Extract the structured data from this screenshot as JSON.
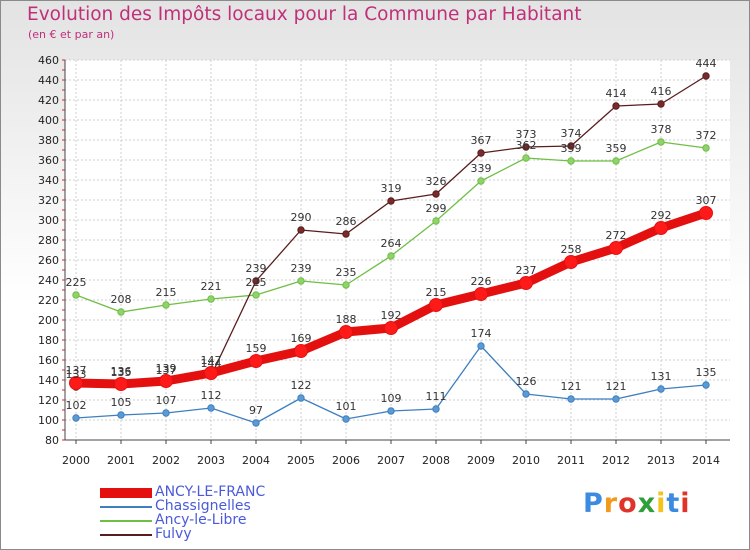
{
  "header": {
    "title": "Evolution des Impôts locaux pour la Commune par Habitant",
    "subtitle": "(en € et par an)"
  },
  "brand": {
    "text": "Proxiti",
    "letter_colors": [
      "#3b8be0",
      "#f29a1c",
      "#e0342b",
      "#2e9f3a",
      "#f2c51c",
      "#3b8be0",
      "#e0342b"
    ]
  },
  "chart_data": {
    "type": "line",
    "title": "Evolution des Impôts locaux pour la Commune par Habitant",
    "subtitle": "(en € et par an)",
    "x": [
      "2000",
      "2001",
      "2002",
      "2003",
      "2004",
      "2005",
      "2006",
      "2007",
      "2008",
      "2009",
      "2010",
      "2011",
      "2012",
      "2013",
      "2014"
    ],
    "ylim": [
      80,
      460
    ],
    "yticks": [
      80,
      100,
      120,
      140,
      160,
      180,
      200,
      220,
      240,
      260,
      280,
      300,
      320,
      340,
      360,
      380,
      400,
      420,
      440,
      460
    ],
    "grid": true,
    "legend_position": "bottom-left",
    "series": [
      {
        "name": "ANCY-LE-FRANC",
        "color": "#ff0000",
        "values": [
          137,
          136,
          139,
          147,
          159,
          169,
          188,
          192,
          215,
          226,
          237,
          258,
          272,
          292,
          307
        ]
      },
      {
        "name": "Chassignelles",
        "color": "#5b9bd5",
        "values": [
          102,
          105,
          107,
          112,
          97,
          122,
          101,
          109,
          111,
          174,
          126,
          121,
          121,
          131,
          135
        ]
      },
      {
        "name": "Ancy-le-Libre",
        "color": "#8fd36a",
        "values": [
          225,
          208,
          215,
          221,
          225,
          239,
          235,
          264,
          299,
          339,
          362,
          359,
          359,
          378,
          372
        ]
      },
      {
        "name": "Fulvy",
        "color": "#7a2a2a",
        "values": [
          133,
          135,
          137,
          144,
          239,
          290,
          286,
          319,
          326,
          367,
          373,
          374,
          414,
          416,
          444
        ]
      }
    ]
  }
}
